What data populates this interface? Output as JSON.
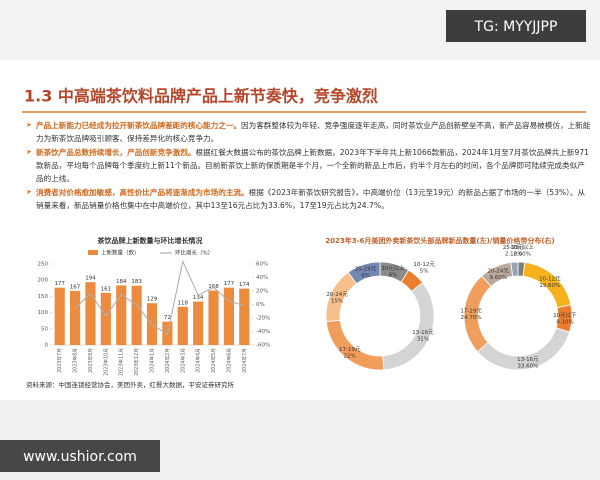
{
  "watermark": "TG: MYYJJPP",
  "site": "www.ushior.com",
  "heading": "1.3 中高端茶饮料品牌产品上新节奏快，竞争激烈",
  "bullets": [
    {
      "lead": "产品上新能力已经成为拉开新茶饮品牌差距的核心能力之一。",
      "body": "因为客群整体较为年轻、竞争强度逐年走高，同时茶饮业产品创新壁垒不高，新产品容易被模仿，上新能力为新茶饮品牌吸引顾客、保持差异化的核心竞争力。"
    },
    {
      "lead": "新茶饮产品总数持续增长，产品创新竞争激烈。",
      "body": "根据红餐大数据公布的茶饮品牌上新数据，2023年下半年共上新1066款新品，2024年1月至7月茶饮品牌共上新971款新品，平均每个品牌每个季度约上新11个新品。目前新茶饮上新的保质期是半个月，一个全新的新品上市后，约半个月左右的时间，各个品牌即可陆续完成类似产品的上线。"
    },
    {
      "lead": "消费者对价格愈加敏感，高性价比产品将逐渐成为市场的主流。",
      "body": "根据《2023年新茶饮研究报告》，中高端价位（13元至19元）的新品占据了市场的一半（53%）。从销量来看，新品销量价格也集中在中高端价位，其中13至16元占比为33.6%，17至19元占比为24.7%。"
    }
  ],
  "donut_panel_title": "2023年3-6月美团外卖新茶饮头部品牌新品数量(左)/销量价格带分布(右)",
  "source": "资料来源：中国连锁经营协会，美团外卖，红餐大数据，平安证券研究所",
  "chart_data": [
    {
      "type": "bar",
      "title": "茶饮品牌上新数量与环比增长情况",
      "categories": [
        "2023年7月",
        "2023年8月",
        "2023年9月",
        "2023年10月",
        "2023年11月",
        "2023年12月",
        "2024年1月",
        "2024年2月",
        "2024年3月",
        "2024年4月",
        "2024年5月",
        "2024年6月",
        "2024年7月"
      ],
      "series": [
        {
          "name": "上新数量（款）",
          "color": "#ec8a3e",
          "values": [
            177,
            167,
            194,
            161,
            184,
            183,
            129,
            72,
            118,
            134,
            168,
            177,
            174
          ]
        },
        {
          "name": "环比增长（%）",
          "type": "line",
          "axis": "y2",
          "color": "#b0b0b0",
          "values": [
            null,
            -5.6,
            16.2,
            -17,
            14.3,
            -0.5,
            -29.5,
            -44.2,
            63.9,
            13.6,
            25.4,
            5.4,
            -1.7
          ]
        }
      ],
      "ylim": [
        0,
        250
      ],
      "yticks": [
        0,
        50,
        100,
        150,
        200,
        250
      ],
      "y2lim": [
        -60,
        60
      ],
      "y2ticks": [
        {
          "value": -60,
          "label": "-60%"
        },
        {
          "value": -40,
          "label": "-40%"
        },
        {
          "value": -20,
          "label": "-20%"
        },
        {
          "value": 0,
          "label": "0%"
        },
        {
          "value": 20,
          "label": "20%"
        },
        {
          "value": 40,
          "label": "40%"
        },
        {
          "value": 60,
          "label": "60%"
        }
      ]
    },
    {
      "type": "pie",
      "categories": [
        "30元以上",
        "10-12元",
        "13-16元",
        "17-19元",
        "20-24元",
        "25-29元"
      ],
      "values": [
        8,
        5,
        31,
        22,
        15,
        9
      ],
      "value_labels": [
        "8%",
        "5%",
        "31%",
        "22%",
        "15%",
        "9%"
      ],
      "colors": [
        "#8c8c8c",
        "#ec7f2e",
        "#d4d4d4",
        "#f19d5c",
        "#f6bf8b",
        "#7487b3"
      ]
    },
    {
      "type": "pie",
      "categories": [
        "30元以上",
        "10-12元",
        "10元以下",
        "13-16元",
        "17-19元",
        "20-24元",
        "25-29元"
      ],
      "values": [
        2,
        19.6,
        8.1,
        33.6,
        24.7,
        9.6,
        2.1
      ],
      "value_labels": [
        "2.00%",
        "19.60%",
        "8.10%",
        "33.60%",
        "24.70%",
        "9.60%",
        "2.10%"
      ],
      "colors": [
        "#7d7d7d",
        "#f5b21c",
        "#ec7f2e",
        "#d4d4d4",
        "#f19d5c",
        "#b9a99a",
        "#9aa3b5"
      ]
    }
  ]
}
